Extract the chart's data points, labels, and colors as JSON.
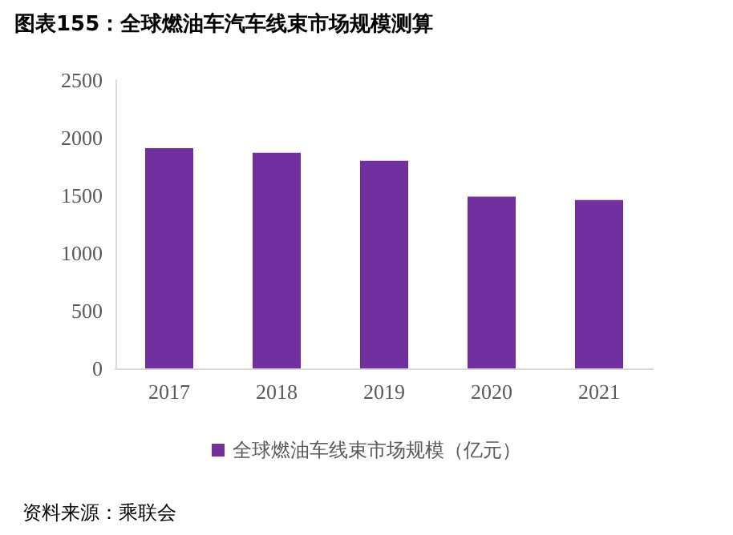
{
  "chart_data": {
    "type": "bar",
    "title": "图表155：全球燃油车汽车线束市场规模测算",
    "categories": [
      "2017",
      "2018",
      "2019",
      "2020",
      "2021"
    ],
    "series": [
      {
        "name": "全球燃油车线束市场规模（亿元）",
        "color": "#7030a0",
        "values": [
          1910,
          1870,
          1800,
          1490,
          1460
        ]
      }
    ],
    "ylim": [
      0,
      2500
    ],
    "yticks": [
      0,
      500,
      1000,
      1500,
      2000,
      2500
    ],
    "grid": false,
    "legend": "bottom",
    "annotations": [
      "资料来源：乘联会"
    ]
  }
}
